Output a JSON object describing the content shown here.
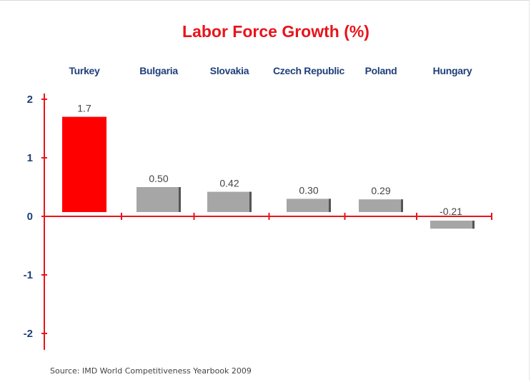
{
  "chart_data": {
    "type": "bar",
    "title": "Labor Force Growth (%)",
    "categories": [
      "Turkey",
      "Bulgaria",
      "Slovakia",
      "Czech Republic",
      "Poland",
      "Hungary"
    ],
    "values": [
      1.7,
      0.5,
      0.42,
      0.3,
      0.29,
      -0.21
    ],
    "value_labels": [
      "1.7",
      "0.50",
      "0.42",
      "0.30",
      "0.29",
      "-0.21"
    ],
    "yticks": [
      "2",
      "1",
      "0",
      "-1",
      "-2"
    ],
    "ylim": [
      -2,
      2
    ],
    "category_position": "top",
    "grid": false,
    "legend": "none",
    "colors": {
      "highlight": "#ff0000",
      "bar": "#a6a6a6",
      "bar_shadow": "#555555",
      "axis": "#e8141b",
      "title": "#e8141b",
      "labels": "#1f3f7a"
    },
    "source": "Source: IMD World Competitiveness Yearbook 2009"
  }
}
